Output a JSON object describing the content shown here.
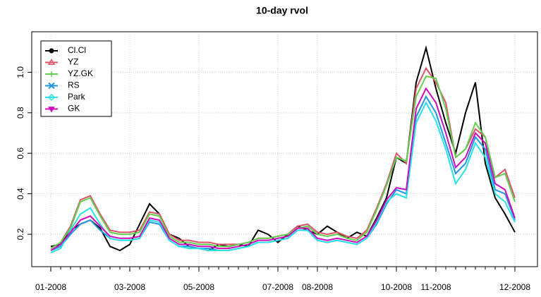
{
  "chart_data": {
    "type": "line",
    "title": "10-day rvol",
    "categories": [
      "01-2008",
      null,
      null,
      null,
      null,
      null,
      null,
      null,
      "03-2008",
      null,
      null,
      null,
      null,
      null,
      null,
      "05-2008",
      null,
      null,
      null,
      null,
      null,
      null,
      null,
      "07-2008",
      null,
      null,
      null,
      "08-2008",
      null,
      null,
      null,
      null,
      null,
      null,
      null,
      "10-2008",
      null,
      null,
      null,
      "11-2008",
      null,
      null,
      null,
      null,
      null,
      null,
      null,
      "12-2008"
    ],
    "series": [
      {
        "name": "Cl.Cl",
        "color": "#000000",
        "marker": "circle",
        "values": [
          0.14,
          0.15,
          0.22,
          0.25,
          0.27,
          0.23,
          0.14,
          0.12,
          0.15,
          0.25,
          0.35,
          0.3,
          0.2,
          0.18,
          0.14,
          0.13,
          0.12,
          0.15,
          0.14,
          0.15,
          0.14,
          0.22,
          0.2,
          0.16,
          0.2,
          0.24,
          0.22,
          0.2,
          0.24,
          0.21,
          0.18,
          0.21,
          0.19,
          0.28,
          0.38,
          0.58,
          0.55,
          0.95,
          1.12,
          0.92,
          0.75,
          0.6,
          0.8,
          0.95,
          0.55,
          0.38,
          0.3,
          0.21
        ]
      },
      {
        "name": "YZ",
        "color": "#DF536B",
        "marker": "triangle",
        "values": [
          0.13,
          0.16,
          0.24,
          0.37,
          0.39,
          0.3,
          0.22,
          0.21,
          0.21,
          0.22,
          0.31,
          0.3,
          0.2,
          0.17,
          0.17,
          0.16,
          0.16,
          0.15,
          0.15,
          0.15,
          0.16,
          0.18,
          0.18,
          0.19,
          0.2,
          0.24,
          0.25,
          0.21,
          0.2,
          0.21,
          0.19,
          0.18,
          0.22,
          0.33,
          0.45,
          0.6,
          0.55,
          0.92,
          1.02,
          0.95,
          0.85,
          0.58,
          0.62,
          0.72,
          0.68,
          0.48,
          0.52,
          0.38
        ]
      },
      {
        "name": "YZ.GK",
        "color": "#61D04F",
        "marker": "plus",
        "values": [
          0.13,
          0.16,
          0.23,
          0.36,
          0.38,
          0.29,
          0.21,
          0.2,
          0.2,
          0.21,
          0.3,
          0.29,
          0.19,
          0.16,
          0.16,
          0.15,
          0.15,
          0.14,
          0.14,
          0.15,
          0.16,
          0.18,
          0.18,
          0.19,
          0.2,
          0.23,
          0.24,
          0.2,
          0.19,
          0.2,
          0.18,
          0.17,
          0.21,
          0.32,
          0.44,
          0.58,
          0.56,
          0.88,
          0.98,
          0.97,
          0.82,
          0.58,
          0.62,
          0.75,
          0.68,
          0.48,
          0.5,
          0.36
        ]
      },
      {
        "name": "RS",
        "color": "#2297E6",
        "marker": "cross",
        "values": [
          0.12,
          0.14,
          0.2,
          0.25,
          0.27,
          0.22,
          0.18,
          0.17,
          0.17,
          0.18,
          0.26,
          0.25,
          0.17,
          0.14,
          0.14,
          0.13,
          0.13,
          0.12,
          0.12,
          0.13,
          0.14,
          0.16,
          0.16,
          0.17,
          0.18,
          0.22,
          0.22,
          0.17,
          0.16,
          0.17,
          0.16,
          0.15,
          0.18,
          0.25,
          0.35,
          0.42,
          0.4,
          0.78,
          0.88,
          0.8,
          0.65,
          0.5,
          0.55,
          0.68,
          0.62,
          0.42,
          0.4,
          0.27
        ]
      },
      {
        "name": "Park",
        "color": "#28E2E5",
        "marker": "diamond",
        "values": [
          0.11,
          0.13,
          0.22,
          0.3,
          0.33,
          0.25,
          0.18,
          0.17,
          0.17,
          0.18,
          0.27,
          0.26,
          0.17,
          0.14,
          0.13,
          0.13,
          0.12,
          0.12,
          0.12,
          0.13,
          0.14,
          0.16,
          0.16,
          0.17,
          0.18,
          0.22,
          0.22,
          0.17,
          0.16,
          0.17,
          0.16,
          0.15,
          0.18,
          0.26,
          0.36,
          0.4,
          0.38,
          0.75,
          0.85,
          0.76,
          0.62,
          0.45,
          0.52,
          0.65,
          0.58,
          0.4,
          0.36,
          0.26
        ]
      },
      {
        "name": "GK",
        "color": "#CD0BBC",
        "marker": "down-triangle",
        "values": [
          0.12,
          0.15,
          0.21,
          0.27,
          0.29,
          0.24,
          0.19,
          0.18,
          0.18,
          0.19,
          0.28,
          0.27,
          0.18,
          0.15,
          0.15,
          0.14,
          0.14,
          0.13,
          0.13,
          0.14,
          0.15,
          0.17,
          0.17,
          0.18,
          0.19,
          0.23,
          0.23,
          0.18,
          0.17,
          0.18,
          0.17,
          0.16,
          0.19,
          0.27,
          0.37,
          0.43,
          0.42,
          0.82,
          0.92,
          0.85,
          0.7,
          0.53,
          0.58,
          0.7,
          0.65,
          0.45,
          0.42,
          0.28
        ]
      }
    ],
    "ylim": [
      0.04,
      1.2
    ],
    "yticks": [
      0.2,
      0.4,
      0.6,
      0.8,
      {
        "value": 1,
        "label": "1.0"
      }
    ],
    "grid": true,
    "legend": "top-left"
  }
}
